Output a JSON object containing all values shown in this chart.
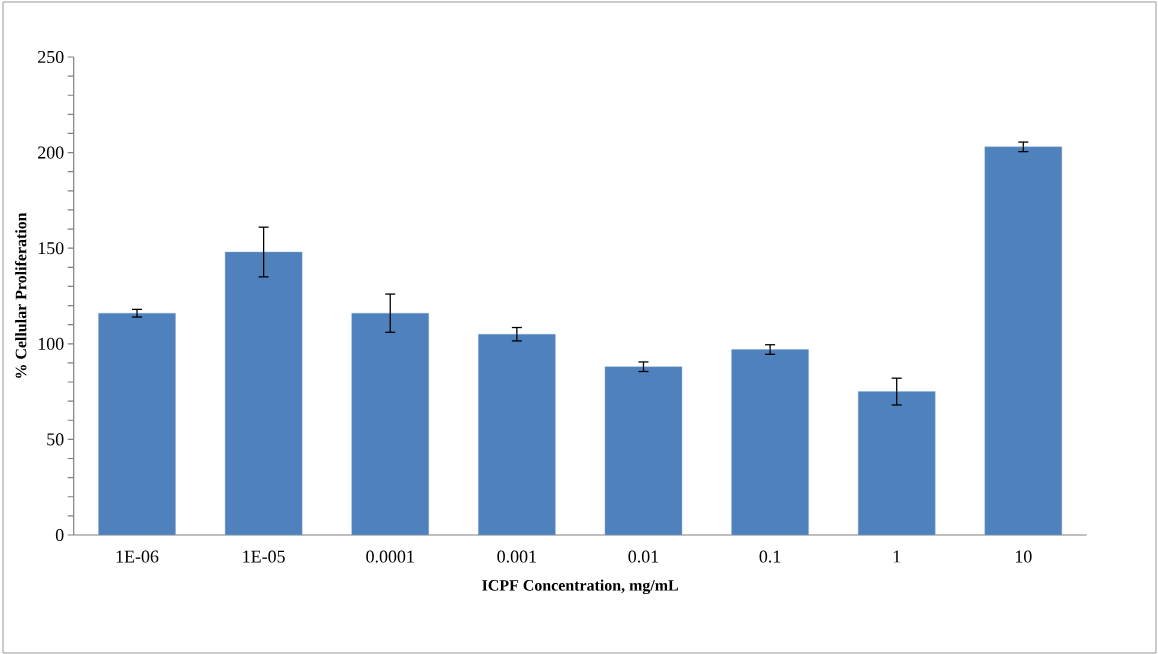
{
  "chart_data": {
    "type": "bar",
    "xlabel": "ICPF Concentration, mg/mL",
    "ylabel": "% Cellular Proliferation",
    "categories": [
      "1E-06",
      "1E-05",
      "0.0001",
      "0.001",
      "0.01",
      "0.1",
      "1",
      "10"
    ],
    "values": [
      116,
      148,
      116,
      105,
      88,
      97,
      75,
      203
    ],
    "errors": [
      2,
      13,
      10,
      3.5,
      2.5,
      2.5,
      7,
      2.5
    ],
    "color": "#4f81bd",
    "ylim": [
      0,
      250
    ],
    "yticks": [
      0,
      50,
      100,
      150,
      200,
      250
    ]
  }
}
